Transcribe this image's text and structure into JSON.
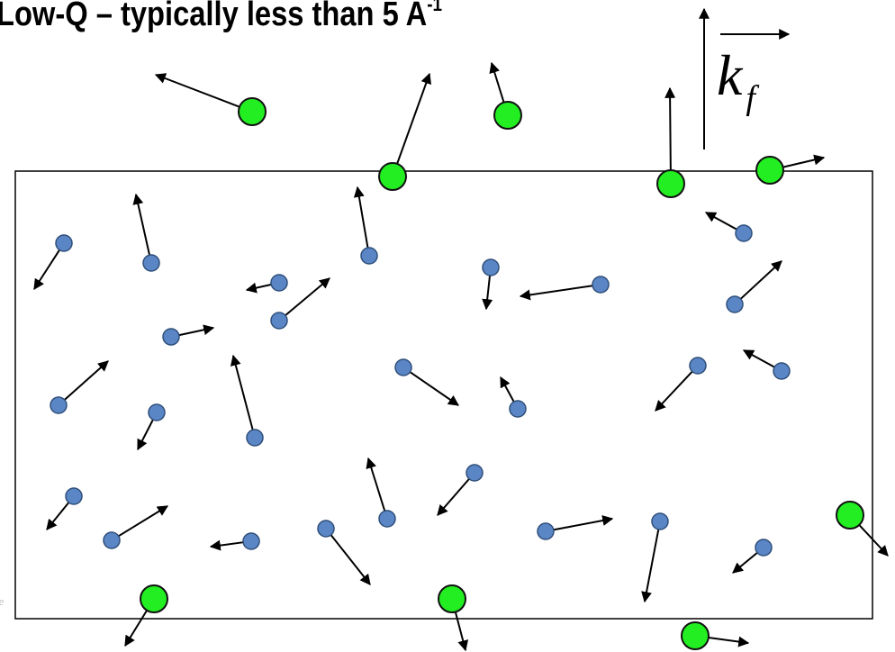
{
  "title": {
    "main": "Low-Q – typically less than 5 A",
    "sup": "-1"
  },
  "vector_label": {
    "letter": "k",
    "subscript": "f"
  },
  "corner_text": "ne",
  "colors": {
    "small": "#5b86c6",
    "small_stroke": "#2f4f7a",
    "big": "#22ee22",
    "big_stroke": "#111111",
    "arrow": "#000000",
    "frame": "#000000"
  }
}
